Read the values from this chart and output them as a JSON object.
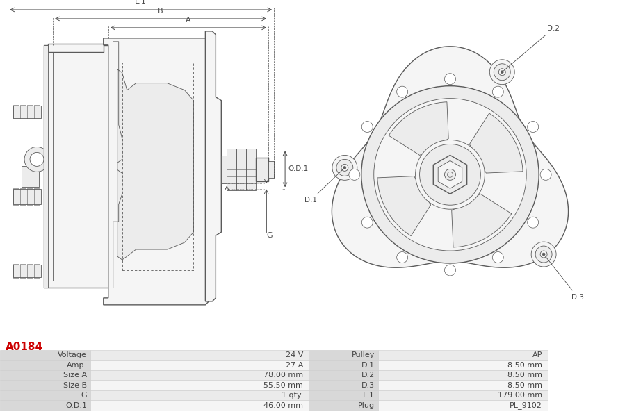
{
  "title": "A0184",
  "title_color": "#cc0000",
  "bg_color": "#ffffff",
  "table_rows": [
    [
      "Voltage",
      "24 V",
      "Pulley",
      "AP"
    ],
    [
      "Amp.",
      "27 A",
      "D.1",
      "8.50 mm"
    ],
    [
      "Size A",
      "78.00 mm",
      "D.2",
      "8.50 mm"
    ],
    [
      "Size B",
      "55.50 mm",
      "D.3",
      "8.50 mm"
    ],
    [
      "G",
      "1 qty.",
      "L.1",
      "179.00 mm"
    ],
    [
      "O.D.1",
      "46.00 mm",
      "Plug",
      "PL_9102"
    ]
  ],
  "table_text_color": "#444444",
  "font_size_table": 8.0,
  "font_size_title": 11
}
